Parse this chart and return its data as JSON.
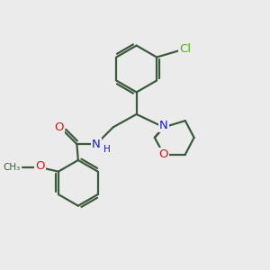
{
  "bg_color": "#ebebeb",
  "bond_color": "#3d5a3d",
  "bond_width": 1.6,
  "atom_colors": {
    "N": "#1a1acc",
    "O": "#cc1a1a",
    "Cl": "#44bb00",
    "C": "#3d5a3d"
  },
  "font_size": 9.5
}
